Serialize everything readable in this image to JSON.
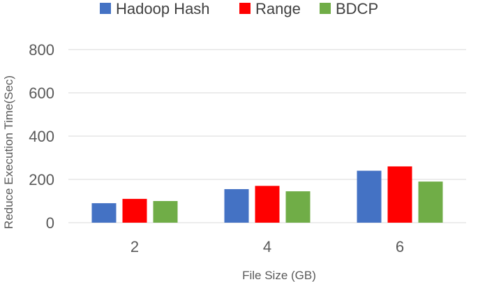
{
  "chart_data": {
    "type": "bar",
    "categories": [
      "2",
      "4",
      "6"
    ],
    "series": [
      {
        "name": "Hadoop Hash",
        "color": "#4472c4",
        "values": [
          90,
          155,
          240
        ]
      },
      {
        "name": "Range",
        "color": "#ff0000",
        "values": [
          110,
          170,
          260
        ]
      },
      {
        "name": "BDCP",
        "color": "#70ad47",
        "values": [
          100,
          145,
          190
        ]
      }
    ],
    "title": "",
    "xlabel": "File Size (GB)",
    "ylabel": "Reduce Execution Time(Sec)",
    "ylim": [
      0,
      800
    ],
    "yticks": [
      "0",
      "200",
      "400",
      "600",
      "800"
    ],
    "grid": true,
    "legend_position": "top"
  }
}
